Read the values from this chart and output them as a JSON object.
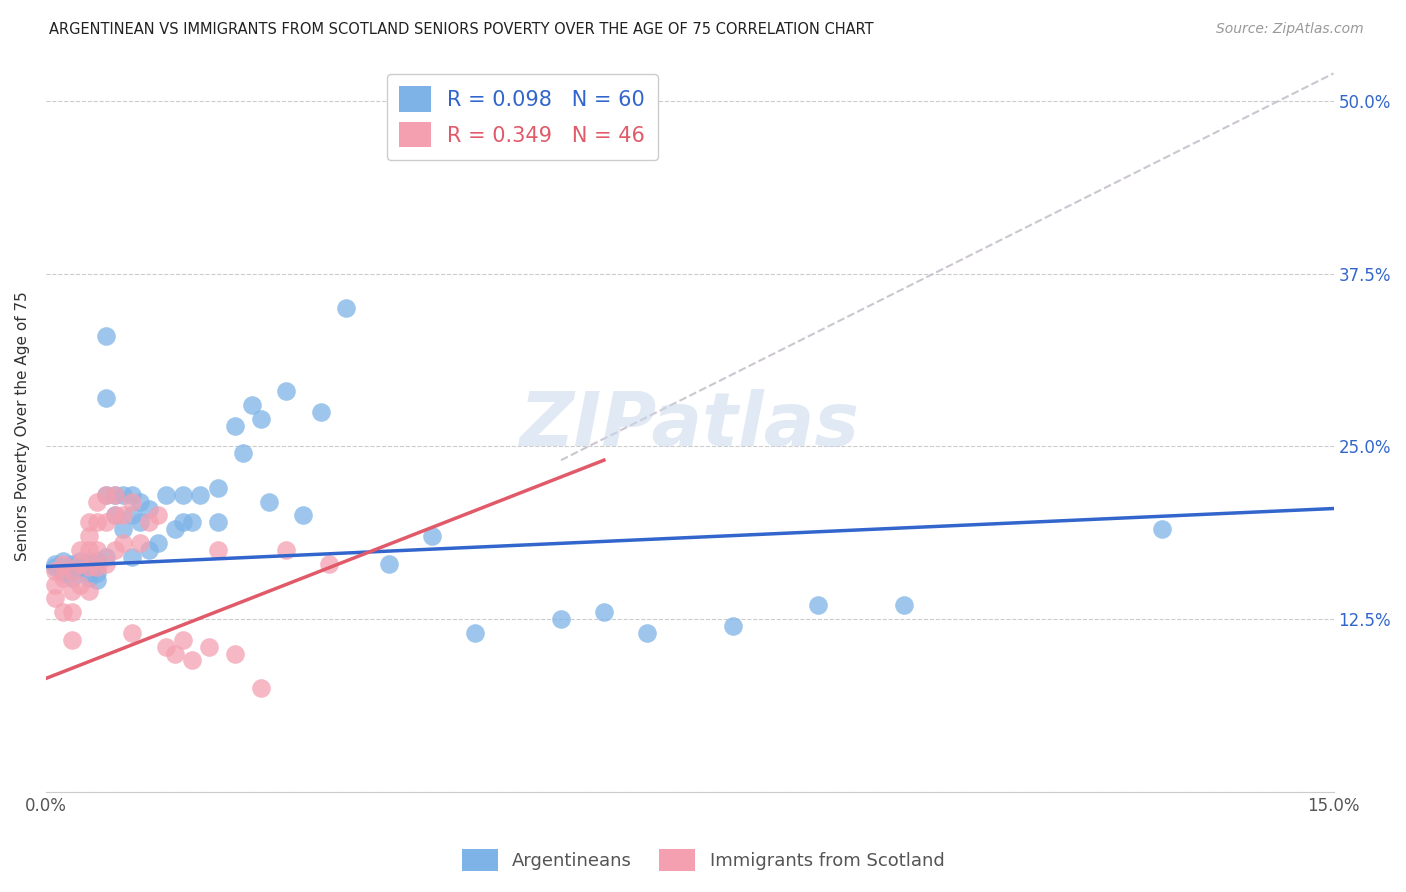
{
  "title": "ARGENTINEAN VS IMMIGRANTS FROM SCOTLAND SENIORS POVERTY OVER THE AGE OF 75 CORRELATION CHART",
  "source": "Source: ZipAtlas.com",
  "ylabel": "Seniors Poverty Over the Age of 75",
  "x_min": 0.0,
  "x_max": 0.15,
  "y_min": 0.0,
  "y_max": 0.53,
  "x_ticks": [
    0.0,
    0.025,
    0.05,
    0.075,
    0.1,
    0.125,
    0.15
  ],
  "x_tick_labels": [
    "0.0%",
    "",
    "",
    "",
    "",
    "",
    "15.0%"
  ],
  "y_ticks": [
    0.0,
    0.125,
    0.25,
    0.375,
    0.5
  ],
  "y_tick_labels": [
    "",
    "12.5%",
    "25.0%",
    "37.5%",
    "50.0%"
  ],
  "color_blue": "#7EB3E8",
  "color_pink": "#F4A0B0",
  "line_blue": "#3366CC",
  "line_pink": "#E05A6A",
  "line_dashed_color": "#C8C0CC",
  "R_blue": 0.098,
  "N_blue": 60,
  "R_pink": 0.349,
  "N_pink": 46,
  "watermark": "ZIPatlas",
  "blue_line_x": [
    0.0,
    0.15
  ],
  "blue_line_y": [
    0.163,
    0.205
  ],
  "pink_line_x": [
    0.0,
    0.065
  ],
  "pink_line_y": [
    0.082,
    0.24
  ],
  "dashed_line_x": [
    0.06,
    0.15
  ],
  "dashed_line_y": [
    0.24,
    0.52
  ],
  "blue_points_x": [
    0.001,
    0.001,
    0.002,
    0.002,
    0.003,
    0.003,
    0.003,
    0.004,
    0.004,
    0.005,
    0.005,
    0.005,
    0.005,
    0.006,
    0.006,
    0.006,
    0.006,
    0.007,
    0.007,
    0.007,
    0.007,
    0.008,
    0.008,
    0.009,
    0.009,
    0.01,
    0.01,
    0.01,
    0.011,
    0.011,
    0.012,
    0.012,
    0.013,
    0.014,
    0.015,
    0.016,
    0.016,
    0.017,
    0.018,
    0.02,
    0.02,
    0.022,
    0.023,
    0.024,
    0.025,
    0.026,
    0.028,
    0.03,
    0.032,
    0.035,
    0.04,
    0.045,
    0.05,
    0.06,
    0.065,
    0.07,
    0.08,
    0.09,
    0.1,
    0.13
  ],
  "blue_points_y": [
    0.165,
    0.163,
    0.167,
    0.158,
    0.165,
    0.16,
    0.155,
    0.167,
    0.162,
    0.167,
    0.163,
    0.158,
    0.155,
    0.167,
    0.163,
    0.158,
    0.153,
    0.33,
    0.285,
    0.215,
    0.17,
    0.215,
    0.2,
    0.215,
    0.19,
    0.215,
    0.2,
    0.17,
    0.21,
    0.195,
    0.205,
    0.175,
    0.18,
    0.215,
    0.19,
    0.215,
    0.195,
    0.195,
    0.215,
    0.22,
    0.195,
    0.265,
    0.245,
    0.28,
    0.27,
    0.21,
    0.29,
    0.2,
    0.275,
    0.35,
    0.165,
    0.185,
    0.115,
    0.125,
    0.13,
    0.115,
    0.12,
    0.135,
    0.135,
    0.19
  ],
  "pink_points_x": [
    0.001,
    0.001,
    0.001,
    0.002,
    0.002,
    0.002,
    0.003,
    0.003,
    0.003,
    0.003,
    0.004,
    0.004,
    0.004,
    0.005,
    0.005,
    0.005,
    0.005,
    0.005,
    0.006,
    0.006,
    0.006,
    0.006,
    0.007,
    0.007,
    0.007,
    0.008,
    0.008,
    0.008,
    0.009,
    0.009,
    0.01,
    0.01,
    0.011,
    0.012,
    0.013,
    0.014,
    0.015,
    0.016,
    0.017,
    0.019,
    0.02,
    0.022,
    0.025,
    0.028,
    0.033,
    0.06
  ],
  "pink_points_y": [
    0.16,
    0.15,
    0.14,
    0.165,
    0.155,
    0.13,
    0.16,
    0.145,
    0.13,
    0.11,
    0.175,
    0.165,
    0.15,
    0.195,
    0.185,
    0.175,
    0.163,
    0.145,
    0.21,
    0.195,
    0.175,
    0.163,
    0.215,
    0.195,
    0.165,
    0.215,
    0.2,
    0.175,
    0.2,
    0.18,
    0.21,
    0.115,
    0.18,
    0.195,
    0.2,
    0.105,
    0.1,
    0.11,
    0.095,
    0.105,
    0.175,
    0.1,
    0.075,
    0.175,
    0.165,
    0.475
  ]
}
